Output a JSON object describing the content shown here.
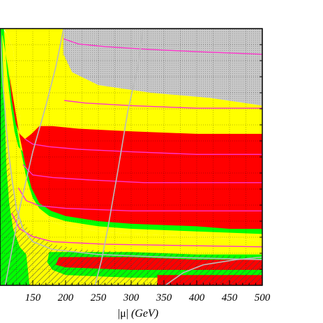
{
  "chart_data": {
    "type": "area",
    "title": "",
    "xlabel": "|μ|",
    "xlabel_unit": "(GeV)",
    "ylabel": "",
    "xlim": [
      100,
      500
    ],
    "ylim": [
      0,
      100
    ],
    "x_ticks": [
      "150",
      "200",
      "250",
      "300",
      "350",
      "400",
      "450",
      "500"
    ],
    "x_tick_values": [
      150,
      200,
      250,
      300,
      350,
      400,
      450,
      500
    ],
    "grid": true,
    "colors": {
      "red": "#ff0000",
      "green": "#00ff00",
      "yellow": "#ffff00",
      "gray": "#c8c8c8",
      "contour_magenta": "#ff33cc",
      "contour_gray": "#bbbbbb",
      "hatch": "#444444"
    },
    "regions": [
      {
        "name": "gray",
        "fill": "gray",
        "points": [
          [
            197,
            100
          ],
          [
            500,
            100
          ],
          [
            500,
            70
          ],
          [
            420,
            73
          ],
          [
            330,
            75
          ],
          [
            250,
            78
          ],
          [
            210,
            83
          ],
          [
            195,
            90
          ],
          [
            195,
            100
          ]
        ]
      },
      {
        "name": "yellow",
        "fill": "yellow",
        "points": [
          [
            106,
            100
          ],
          [
            197,
            100
          ],
          [
            197,
            90
          ],
          [
            210,
            83
          ],
          [
            250,
            78
          ],
          [
            330,
            75
          ],
          [
            420,
            73
          ],
          [
            500,
            70
          ],
          [
            500,
            17
          ],
          [
            470,
            18
          ],
          [
            400,
            19
          ],
          [
            300,
            20
          ],
          [
            250,
            21
          ],
          [
            200,
            23
          ],
          [
            175,
            25
          ],
          [
            160,
            29
          ],
          [
            150,
            35
          ],
          [
            140,
            45
          ],
          [
            132,
            60
          ],
          [
            127,
            75
          ],
          [
            120,
            92
          ],
          [
            110,
            98
          ]
        ]
      },
      {
        "name": "yellow-lower",
        "fill": "yellow",
        "points": [
          [
            100,
            0
          ],
          [
            500,
            0
          ],
          [
            500,
            17
          ],
          [
            470,
            18
          ],
          [
            400,
            19
          ],
          [
            300,
            20
          ],
          [
            250,
            21
          ],
          [
            200,
            23
          ],
          [
            175,
            25
          ],
          [
            160,
            29
          ],
          [
            150,
            35
          ],
          [
            140,
            45
          ],
          [
            132,
            60
          ],
          [
            127,
            75
          ],
          [
            120,
            92
          ],
          [
            110,
            98
          ],
          [
            104,
            100
          ],
          [
            100,
            100
          ]
        ]
      },
      {
        "name": "green",
        "fill": "green",
        "points": [
          [
            100,
            100
          ],
          [
            106,
            100
          ],
          [
            108,
            92
          ],
          [
            111,
            82
          ],
          [
            117,
            69
          ],
          [
            122,
            60
          ],
          [
            128,
            54
          ],
          [
            135,
            52
          ],
          [
            143,
            55
          ],
          [
            150,
            58
          ],
          [
            165,
            61
          ],
          [
            200,
            60
          ],
          [
            300,
            59
          ],
          [
            400,
            58
          ],
          [
            500,
            58
          ],
          [
            500,
            20
          ],
          [
            400,
            21
          ],
          [
            300,
            22
          ],
          [
            250,
            23
          ],
          [
            200,
            25
          ],
          [
            175,
            27
          ],
          [
            160,
            30
          ],
          [
            150,
            34
          ],
          [
            140,
            42
          ],
          [
            130,
            55
          ],
          [
            120,
            70
          ],
          [
            112,
            85
          ],
          [
            104,
            97
          ],
          [
            100,
            100
          ]
        ]
      },
      {
        "name": "red",
        "fill": "red",
        "points": [
          [
            112,
            87
          ],
          [
            118,
            72
          ],
          [
            124,
            63
          ],
          [
            130,
            59
          ],
          [
            138,
            57
          ],
          [
            148,
            59
          ],
          [
            160,
            62
          ],
          [
            180,
            62
          ],
          [
            220,
            61
          ],
          [
            300,
            60
          ],
          [
            400,
            59
          ],
          [
            500,
            59
          ],
          [
            500,
            22
          ],
          [
            450,
            22
          ],
          [
            400,
            23
          ],
          [
            300,
            24
          ],
          [
            250,
            25
          ],
          [
            200,
            27
          ],
          [
            178,
            29
          ],
          [
            160,
            32
          ],
          [
            148,
            38
          ],
          [
            138,
            48
          ],
          [
            130,
            58
          ],
          [
            122,
            70
          ],
          [
            114,
            82
          ]
        ]
      },
      {
        "name": "green-bottom",
        "fill": "green",
        "points": [
          [
            175,
            13
          ],
          [
            200,
            13
          ],
          [
            300,
            13
          ],
          [
            400,
            12
          ],
          [
            500,
            12
          ],
          [
            500,
            3
          ],
          [
            400,
            3
          ],
          [
            300,
            3
          ],
          [
            200,
            4
          ],
          [
            180,
            6
          ],
          [
            172,
            9
          ]
        ]
      },
      {
        "name": "red-bottom",
        "fill": "red",
        "points": [
          [
            190,
            11
          ],
          [
            300,
            11
          ],
          [
            400,
            10
          ],
          [
            500,
            10
          ],
          [
            500,
            6
          ],
          [
            400,
            6
          ],
          [
            300,
            6
          ],
          [
            200,
            7
          ],
          [
            185,
            8
          ]
        ]
      },
      {
        "name": "red-bottom-right",
        "fill": "red",
        "points": [
          [
            340,
            4
          ],
          [
            500,
            4
          ],
          [
            500,
            0
          ],
          [
            340,
            0
          ]
        ]
      },
      {
        "name": "green-left-strip",
        "fill": "green",
        "points": [
          [
            100,
            100
          ],
          [
            103,
            100
          ],
          [
            104,
            90
          ],
          [
            106,
            75
          ],
          [
            108,
            60
          ],
          [
            110,
            45
          ],
          [
            114,
            32
          ],
          [
            120,
            22
          ],
          [
            130,
            15
          ],
          [
            140,
            12
          ],
          [
            145,
            0
          ],
          [
            100,
            0
          ]
        ]
      }
    ],
    "hatched_regions": [
      {
        "name": "hatch-lower-left",
        "points": [
          [
            100,
            0
          ],
          [
            100,
            85
          ],
          [
            104,
            75
          ],
          [
            110,
            55
          ],
          [
            118,
            38
          ],
          [
            130,
            26
          ],
          [
            150,
            20
          ],
          [
            180,
            16
          ],
          [
            220,
            14
          ],
          [
            300,
            13
          ],
          [
            390,
            12
          ],
          [
            500,
            11
          ],
          [
            500,
            0
          ]
        ]
      }
    ],
    "contours": [
      {
        "name": "magenta-1",
        "color": "contour_magenta",
        "points": [
          [
            197,
            96
          ],
          [
            220,
            94
          ],
          [
            260,
            93
          ],
          [
            320,
            92
          ],
          [
            400,
            91
          ],
          [
            500,
            90
          ]
        ]
      },
      {
        "name": "magenta-2",
        "color": "contour_magenta",
        "points": [
          [
            198,
            72
          ],
          [
            230,
            71
          ],
          [
            300,
            70
          ],
          [
            400,
            69
          ],
          [
            500,
            69
          ]
        ]
      },
      {
        "name": "magenta-3",
        "color": "contour_magenta",
        "points": [
          [
            138,
            57
          ],
          [
            150,
            55
          ],
          [
            175,
            54
          ],
          [
            220,
            53
          ],
          [
            300,
            52
          ],
          [
            400,
            51
          ],
          [
            500,
            51
          ]
        ]
      },
      {
        "name": "magenta-4",
        "color": "contour_magenta",
        "points": [
          [
            135,
            47
          ],
          [
            150,
            43
          ],
          [
            180,
            42
          ],
          [
            240,
            41
          ],
          [
            320,
            40
          ],
          [
            400,
            40
          ],
          [
            500,
            40
          ]
        ]
      },
      {
        "name": "magenta-5",
        "color": "contour_magenta",
        "points": [
          [
            128,
            38
          ],
          [
            140,
            33
          ],
          [
            160,
            31
          ],
          [
            200,
            30
          ],
          [
            300,
            29
          ],
          [
            400,
            29
          ],
          [
            500,
            29
          ]
        ]
      },
      {
        "name": "magenta-6",
        "color": "contour_magenta",
        "points": [
          [
            118,
            28
          ],
          [
            130,
            22
          ],
          [
            150,
            19
          ],
          [
            180,
            17
          ],
          [
            260,
            16
          ],
          [
            500,
            15
          ]
        ]
      },
      {
        "name": "gray-curve-left",
        "color": "contour_gray",
        "points": [
          [
            100,
            100
          ],
          [
            102,
            90
          ],
          [
            104,
            80
          ],
          [
            107,
            70
          ],
          [
            110,
            60
          ],
          [
            114,
            50
          ],
          [
            119,
            40
          ],
          [
            125,
            30
          ],
          [
            135,
            22
          ],
          [
            150,
            17
          ],
          [
            180,
            14
          ],
          [
            250,
            12
          ],
          [
            350,
            11
          ],
          [
            500,
            10
          ]
        ]
      },
      {
        "name": "gray-line-1",
        "color": "contour_gray",
        "points": [
          [
            108,
            0
          ],
          [
            130,
            30
          ],
          [
            150,
            52
          ],
          [
            170,
            70
          ],
          [
            185,
            85
          ],
          [
            197,
            100
          ]
        ]
      },
      {
        "name": "gray-line-2",
        "color": "contour_gray",
        "points": [
          [
            245,
            0
          ],
          [
            255,
            10
          ],
          [
            265,
            23
          ],
          [
            280,
            45
          ],
          [
            295,
            68
          ],
          [
            310,
            85
          ],
          [
            318,
            100
          ]
        ]
      },
      {
        "name": "gray-line-3",
        "color": "contour_gray",
        "points": [
          [
            352,
            0
          ],
          [
            380,
            5
          ],
          [
            410,
            8
          ],
          [
            460,
            10
          ],
          [
            500,
            11
          ]
        ]
      }
    ]
  }
}
